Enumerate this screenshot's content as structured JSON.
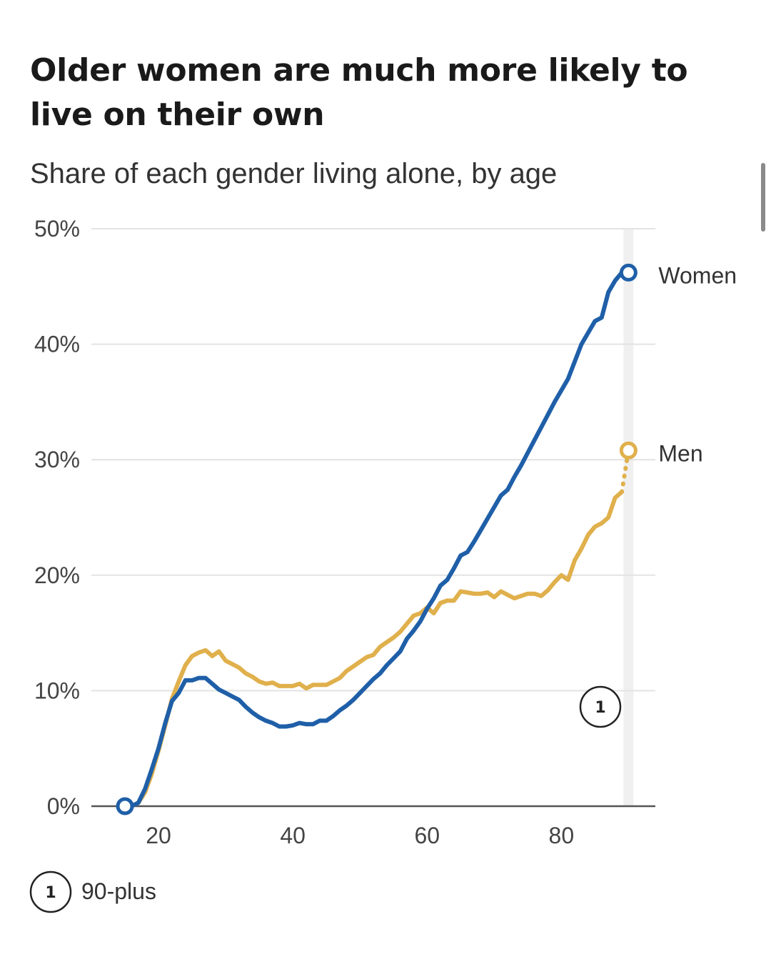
{
  "chart_data": {
    "type": "line",
    "title": "Older women are much more likely to live on their own",
    "subtitle": "Share of each gender living alone, by age",
    "xlim": [
      10,
      94
    ],
    "ylim": [
      0,
      50
    ],
    "x_ticks": [
      {
        "value": 20,
        "label": "20"
      },
      {
        "value": 40,
        "label": "40"
      },
      {
        "value": 60,
        "label": "60"
      },
      {
        "value": 80,
        "label": "80"
      }
    ],
    "y_ticks": [
      {
        "value": 0,
        "label": "0%"
      },
      {
        "value": 10,
        "label": "10%"
      },
      {
        "value": 20,
        "label": "20%"
      },
      {
        "value": 30,
        "label": "30%"
      },
      {
        "value": 40,
        "label": "40%"
      },
      {
        "value": 50,
        "label": "50%"
      }
    ],
    "grid": true,
    "series": [
      {
        "name": "Women",
        "color": "#1f5fa8",
        "x": [
          15,
          16,
          17,
          18,
          19,
          20,
          21,
          22,
          23,
          24,
          25,
          26,
          27,
          28,
          29,
          30,
          31,
          32,
          33,
          34,
          35,
          36,
          37,
          38,
          39,
          40,
          41,
          42,
          43,
          44,
          45,
          46,
          47,
          48,
          49,
          50,
          51,
          52,
          53,
          54,
          55,
          56,
          57,
          58,
          59,
          60,
          61,
          62,
          63,
          64,
          65,
          66,
          67,
          68,
          69,
          70,
          71,
          72,
          73,
          74,
          75,
          76,
          77,
          78,
          79,
          80,
          81,
          82,
          83,
          84,
          85,
          86,
          87,
          88,
          89
        ],
        "values": [
          0,
          0,
          0.3,
          1.5,
          3.2,
          5,
          7.2,
          9.1,
          9.8,
          10.9,
          10.9,
          11.1,
          11.1,
          10.6,
          10.1,
          9.8,
          9.5,
          9.2,
          8.6,
          8.1,
          7.7,
          7.4,
          7.2,
          6.9,
          6.9,
          7,
          7.2,
          7.1,
          7.1,
          7.4,
          7.4,
          7.8,
          8.3,
          8.7,
          9.2,
          9.8,
          10.4,
          11,
          11.5,
          12.2,
          12.8,
          13.4,
          14.5,
          15.2,
          16,
          17.1,
          18,
          19.1,
          19.6,
          20.6,
          21.7,
          22,
          22.9,
          23.9,
          24.9,
          25.9,
          26.9,
          27.4,
          28.5,
          29.5,
          30.6,
          31.7,
          32.8,
          33.9,
          35,
          36,
          37,
          38.5,
          40,
          41,
          42,
          42.3,
          44.5,
          45.5,
          46.2
        ],
        "end": {
          "x": 90,
          "value": 46.2
        }
      },
      {
        "name": "Men",
        "color": "#e0b04c",
        "x": [
          15,
          16,
          17,
          18,
          19,
          20,
          21,
          22,
          23,
          24,
          25,
          26,
          27,
          28,
          29,
          30,
          31,
          32,
          33,
          34,
          35,
          36,
          37,
          38,
          39,
          40,
          41,
          42,
          43,
          44,
          45,
          46,
          47,
          48,
          49,
          50,
          51,
          52,
          53,
          54,
          55,
          56,
          57,
          58,
          59,
          60,
          61,
          62,
          63,
          64,
          65,
          66,
          67,
          68,
          69,
          70,
          71,
          72,
          73,
          74,
          75,
          76,
          77,
          78,
          79,
          80,
          81,
          82,
          83,
          84,
          85,
          86,
          87,
          88,
          89
        ],
        "values": [
          0,
          0,
          0.3,
          1.2,
          2.8,
          4.8,
          7,
          9.3,
          10.8,
          12.2,
          13,
          13.3,
          13.5,
          13,
          13.4,
          12.6,
          12.3,
          12,
          11.5,
          11.2,
          10.8,
          10.6,
          10.7,
          10.4,
          10.4,
          10.4,
          10.6,
          10.2,
          10.5,
          10.5,
          10.5,
          10.8,
          11.1,
          11.7,
          12.1,
          12.5,
          12.9,
          13.1,
          13.8,
          14.2,
          14.6,
          15.1,
          15.8,
          16.5,
          16.7,
          17.2,
          16.7,
          17.6,
          17.8,
          17.8,
          18.6,
          18.5,
          18.4,
          18.4,
          18.5,
          18.1,
          18.6,
          18.3,
          18,
          18.2,
          18.4,
          18.4,
          18.2,
          18.7,
          19.4,
          20,
          19.6,
          21.3,
          22.3,
          23.5,
          24.2,
          24.5,
          25,
          26.7,
          27.2
        ],
        "end": {
          "x": 90,
          "value": 30.8
        }
      }
    ],
    "highlight": {
      "x": 90,
      "marker": "1"
    },
    "footnote": {
      "marker": "1",
      "text": "90-plus"
    }
  }
}
